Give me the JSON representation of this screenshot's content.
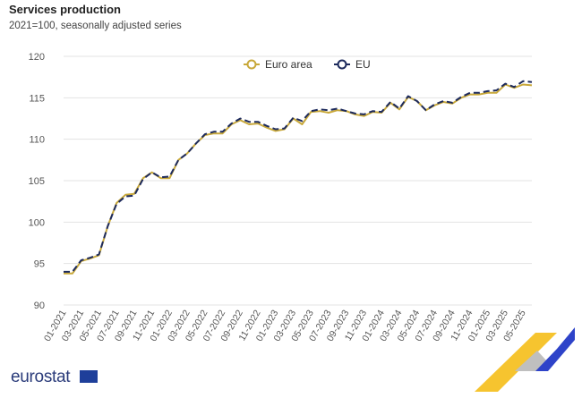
{
  "chart_data": {
    "type": "line",
    "title": "Services production",
    "subtitle": "2021=100, seasonally adjusted series",
    "xlabel": "",
    "ylabel": "",
    "ylim": [
      90,
      120
    ],
    "yticks": [
      90,
      95,
      100,
      105,
      110,
      115,
      120
    ],
    "grid": true,
    "legend_position": "top-center",
    "x": [
      "01-2021",
      "02-2021",
      "03-2021",
      "04-2021",
      "05-2021",
      "06-2021",
      "07-2021",
      "08-2021",
      "09-2021",
      "10-2021",
      "11-2021",
      "12-2021",
      "01-2022",
      "02-2022",
      "03-2022",
      "04-2022",
      "05-2022",
      "06-2022",
      "07-2022",
      "08-2022",
      "09-2022",
      "10-2022",
      "11-2022",
      "12-2022",
      "01-2023",
      "02-2023",
      "03-2023",
      "04-2023",
      "05-2023",
      "06-2023",
      "07-2023",
      "08-2023",
      "09-2023",
      "10-2023",
      "11-2023",
      "12-2023",
      "01-2024",
      "02-2024",
      "03-2024",
      "04-2024",
      "05-2024",
      "06-2024",
      "07-2024",
      "08-2024",
      "09-2024",
      "10-2024",
      "11-2024",
      "12-2024",
      "01-2025",
      "02-2025",
      "03-2025",
      "04-2025",
      "05-2025",
      "06-2025"
    ],
    "series": [
      {
        "name": "Euro area",
        "color": "#c8a83a",
        "style": "solid",
        "values": [
          93.8,
          93.8,
          95.3,
          95.6,
          96.0,
          99.5,
          102.3,
          103.3,
          103.4,
          105.3,
          106.0,
          105.3,
          105.3,
          107.5,
          108.3,
          109.5,
          110.5,
          110.7,
          110.7,
          111.8,
          112.3,
          111.8,
          111.9,
          111.4,
          111.0,
          111.2,
          112.5,
          111.8,
          113.3,
          113.4,
          113.2,
          113.5,
          113.4,
          113.0,
          112.8,
          113.3,
          113.2,
          114.4,
          113.6,
          115.1,
          114.6,
          113.5,
          114.1,
          114.5,
          114.3,
          115.0,
          115.4,
          115.4,
          115.6,
          115.6,
          116.6,
          116.2,
          116.6,
          116.5
        ]
      },
      {
        "name": "EU",
        "color": "#1d2a5c",
        "style": "dashed",
        "values": [
          94.0,
          94.0,
          95.4,
          95.7,
          96.1,
          99.5,
          102.2,
          103.1,
          103.2,
          105.2,
          106.0,
          105.4,
          105.5,
          107.5,
          108.3,
          109.5,
          110.6,
          110.9,
          110.9,
          111.9,
          112.5,
          112.1,
          112.1,
          111.6,
          111.2,
          111.3,
          112.6,
          112.2,
          113.4,
          113.6,
          113.5,
          113.7,
          113.4,
          113.1,
          113.0,
          113.4,
          113.3,
          114.5,
          113.7,
          115.2,
          114.6,
          113.5,
          114.2,
          114.6,
          114.4,
          115.1,
          115.6,
          115.6,
          115.8,
          115.9,
          116.7,
          116.3,
          117.0,
          116.9
        ]
      }
    ]
  },
  "logo": {
    "text": "eurostat"
  }
}
